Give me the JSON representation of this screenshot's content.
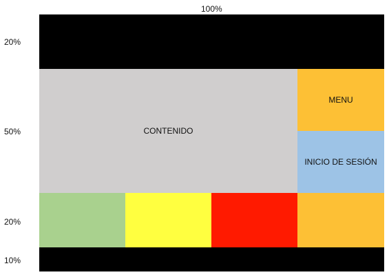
{
  "labels": {
    "width": "100%",
    "row_header": "20%",
    "row_main": "50%",
    "row_footer": "20%",
    "row_bottom": "10%"
  },
  "blocks": {
    "header": {
      "label": "",
      "color": "#000000"
    },
    "content": {
      "label": "CONTENIDO",
      "color": "#d0cece"
    },
    "menu": {
      "label": "MENU",
      "color": "#fdc035"
    },
    "login": {
      "label": "INICIO DE SESIÓN",
      "color": "#9dc3e6"
    },
    "footer_cells": [
      {
        "label": "",
        "color": "#a9d18e"
      },
      {
        "label": "",
        "color": "#ffff40"
      },
      {
        "label": "",
        "color": "#ff1a00"
      },
      {
        "label": "",
        "color": "#fdc035"
      }
    ],
    "bottom": {
      "label": "",
      "color": "#000000"
    }
  }
}
